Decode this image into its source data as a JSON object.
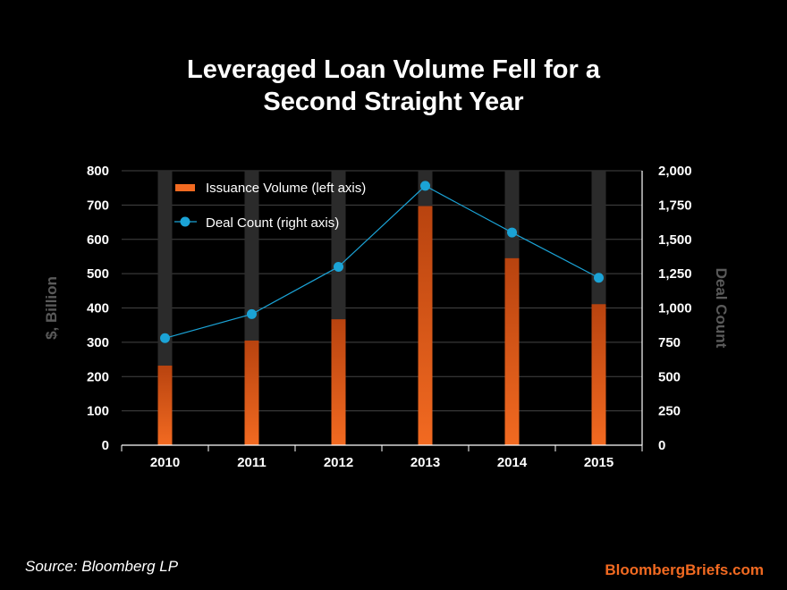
{
  "chart_data": {
    "type": "bar",
    "title": "Leveraged Loan Volume Fell for a\nSecond Straight Year",
    "categories": [
      "2010",
      "2011",
      "2012",
      "2013",
      "2014",
      "2015"
    ],
    "series": [
      {
        "name": "Issuance Volume (left axis)",
        "type": "bar",
        "axis": "left",
        "values": [
          232,
          305,
          367,
          697,
          545,
          411
        ]
      },
      {
        "name": "Deal Count (right axis)",
        "type": "line",
        "axis": "right",
        "values": [
          780,
          955,
          1300,
          1890,
          1550,
          1220
        ]
      }
    ],
    "ylabel": "$, Billion",
    "ylabel_right": "Deal Count",
    "ylim": [
      0,
      800
    ],
    "ylim_right": [
      0,
      2000
    ],
    "yticks": [
      "0",
      "100",
      "200",
      "300",
      "400",
      "500",
      "600",
      "700",
      "800"
    ],
    "yticks_right": [
      "0",
      "250",
      "500",
      "750",
      "1,000",
      "1,250",
      "1,500",
      "1,750",
      "2,000"
    ],
    "grid": true,
    "legend_position": "top-left",
    "colors": {
      "background": "#000000",
      "bar": "#f26a21",
      "bar_track": "#2b2b2b",
      "line": "#1ba3d6",
      "grid": "#444444",
      "axis_title": "#5a5a5a"
    }
  },
  "footer": {
    "source": "Source: Bloomberg LP",
    "brand": "BloombergBriefs.com"
  }
}
